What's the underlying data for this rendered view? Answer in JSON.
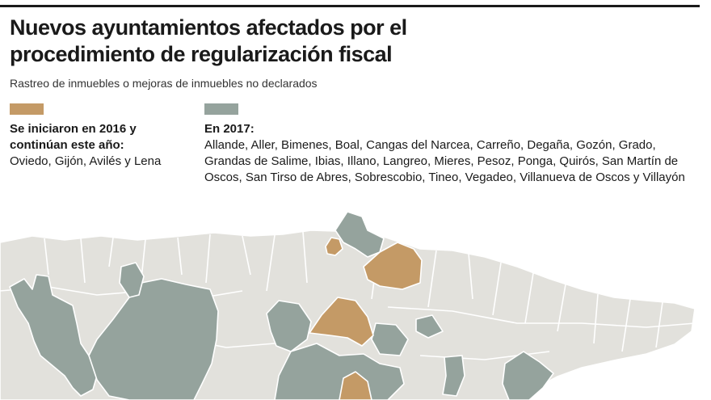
{
  "header": {
    "title_line1": "Nuevos ayuntamientos afectados por el",
    "title_line2": "procedimiento de regularización fiscal",
    "subtitle": "Rastreo de inmuebles o mejoras de inmuebles no declarados"
  },
  "legend": {
    "items": [
      {
        "color": "#c49a66",
        "heading": "Se iniciaron en 2016 y continúan este año:",
        "text": "Oviedo, Gijón, Avilés y Lena"
      },
      {
        "color": "#95a39d",
        "heading": "En 2017:",
        "text": "Allande, Aller, Bimenes, Boal, Cangas del Narcea, Carreño, Degaña, Gozón, Grado, Grandas de Salime, Ibias, Illano, Langreo, Mieres, Pesoz, Ponga, Quirós, San Martín de Oscos, San Tirso de Abres, Sobrescobio, Tineo, Vegadeo, Villanueva de Oscos y Villayón"
      }
    ]
  },
  "map": {
    "colors": {
      "base": "#e2e1dc",
      "highlight_2016": "#c49a66",
      "highlight_2017": "#95a39d",
      "border": "#ffffff"
    }
  }
}
